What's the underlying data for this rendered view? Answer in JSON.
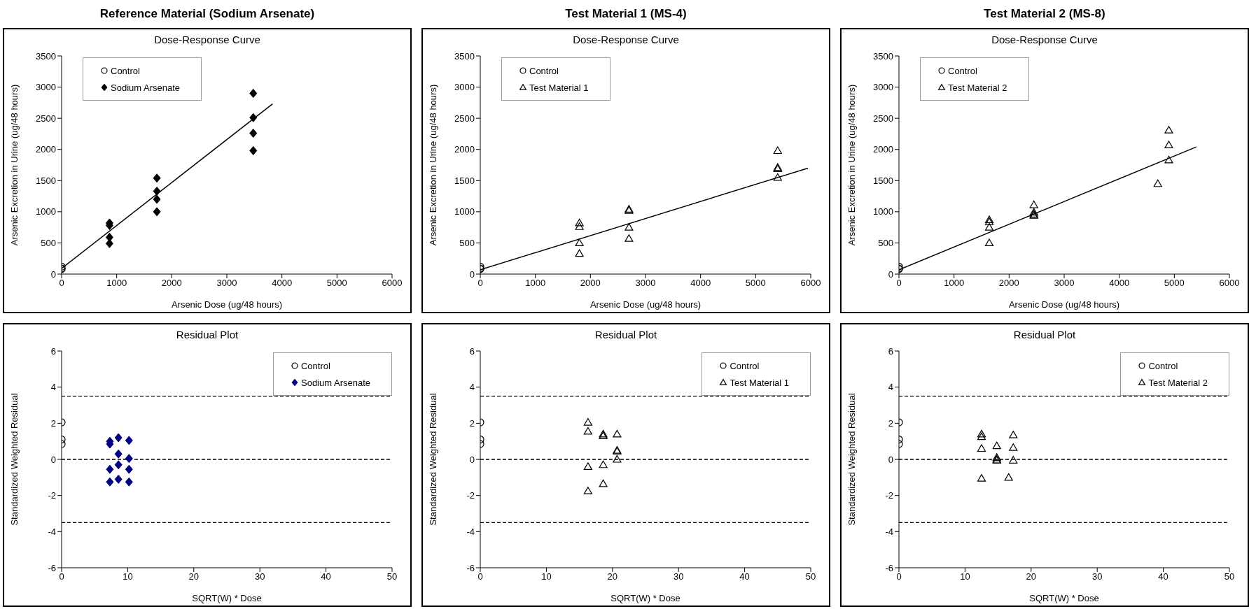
{
  "chart_data": [
    {
      "type": "scatter",
      "title": "Reference Material (Sodium Arsenate)",
      "subtitle": "Dose-Response Curve",
      "xlabel": "Arsenic Dose (ug/48 hours)",
      "ylabel": "Arsenic Excretion in Urine (ug/48 hours)",
      "xlim": [
        0,
        6000
      ],
      "xticks": [
        0,
        1000,
        2000,
        3000,
        4000,
        5000,
        6000
      ],
      "ylim": [
        0,
        3500
      ],
      "yticks": [
        0,
        500,
        1000,
        1500,
        2000,
        2500,
        3000,
        3500
      ],
      "grid": false,
      "legend": "top left",
      "series": [
        {
          "name": "Control",
          "color": "#000000",
          "marker": "circle",
          "x": [
            0,
            0,
            0
          ],
          "values": [
            120,
            90,
            80
          ]
        },
        {
          "name": "Sodium Arsenate",
          "color": "#000000",
          "marker": "diamond",
          "x": [
            870,
            870,
            870,
            870,
            1730,
            1730,
            1730,
            1730,
            3480,
            3480,
            3480,
            3480
          ],
          "values": [
            820,
            780,
            590,
            490,
            1540,
            1330,
            1200,
            1000,
            2900,
            2510,
            2260,
            1980
          ]
        },
        {
          "type": "line",
          "color": "#000000",
          "x": [
            0,
            3830
          ],
          "values": [
            90,
            2730
          ]
        }
      ]
    },
    {
      "type": "scatter",
      "title": "Test Material 1 (MS-4)",
      "subtitle": "Dose-Response Curve",
      "xlabel": "Arsenic Dose (ug/48 hours)",
      "ylabel": "Arsenic Excretion in Urine (ug/48 hours)",
      "xlim": [
        0,
        6000
      ],
      "xticks": [
        0,
        1000,
        2000,
        3000,
        4000,
        5000,
        6000
      ],
      "ylim": [
        0,
        3500
      ],
      "yticks": [
        0,
        500,
        1000,
        1500,
        2000,
        2500,
        3000,
        3500
      ],
      "grid": false,
      "legend": "top left",
      "series": [
        {
          "name": "Control",
          "color": "#000000",
          "marker": "circle",
          "x": [
            0,
            0,
            0
          ],
          "values": [
            120,
            90,
            80
          ]
        },
        {
          "name": "Test Material 1",
          "color": "#000000",
          "marker": "triangle",
          "x": [
            1800,
            1800,
            1800,
            1800,
            2700,
            2700,
            2700,
            2700,
            5400,
            5400,
            5400,
            5400
          ],
          "values": [
            820,
            760,
            500,
            330,
            1040,
            1020,
            750,
            570,
            1980,
            1710,
            1690,
            1550
          ]
        },
        {
          "type": "line",
          "color": "#000000",
          "x": [
            0,
            5950
          ],
          "values": [
            70,
            1700
          ]
        }
      ]
    },
    {
      "type": "scatter",
      "title": "Test Material 2 (MS-8)",
      "subtitle": "Dose-Response Curve",
      "xlabel": "Arsenic Dose (ug/48 hours)",
      "ylabel": "Arsenic Excretion in Urine (ug/48 hours)",
      "xlim": [
        0,
        6000
      ],
      "xticks": [
        0,
        1000,
        2000,
        3000,
        4000,
        5000,
        6000
      ],
      "ylim": [
        0,
        3500
      ],
      "yticks": [
        0,
        500,
        1000,
        1500,
        2000,
        2500,
        3000,
        3500
      ],
      "grid": false,
      "legend": "top left",
      "series": [
        {
          "name": "Control",
          "color": "#000000",
          "marker": "circle",
          "x": [
            0,
            0,
            0
          ],
          "values": [
            120,
            90,
            80
          ]
        },
        {
          "name": "Test Material 2",
          "color": "#000000",
          "marker": "triangle",
          "x": [
            1640,
            1640,
            1640,
            1640,
            2450,
            2450,
            2450,
            2450,
            4700,
            4900,
            4900,
            4900
          ],
          "values": [
            870,
            840,
            750,
            500,
            1110,
            990,
            960,
            940,
            1450,
            2310,
            2070,
            1830
          ]
        },
        {
          "type": "line",
          "color": "#000000",
          "x": [
            0,
            5400
          ],
          "values": [
            70,
            2040
          ]
        }
      ]
    },
    {
      "type": "scatter",
      "title": "Residual Plot",
      "xlabel": "SQRT(W) * Dose",
      "ylabel": "Standardized Weighted Residual",
      "xlim": [
        0,
        50
      ],
      "xticks": [
        0,
        10,
        20,
        30,
        40,
        50
      ],
      "ylim": [
        -6,
        6
      ],
      "yticks": [
        -6,
        -4,
        -2,
        0,
        2,
        4,
        6
      ],
      "grid": false,
      "legend": "top right",
      "ref_lines": [
        {
          "axis": "y",
          "value": 3.5,
          "line_style": "dashed"
        },
        {
          "axis": "y",
          "value": 0,
          "line_style": "dashed"
        },
        {
          "axis": "y",
          "value": -3.5,
          "line_style": "dashed"
        }
      ],
      "series": [
        {
          "name": "Control",
          "color": "#000000",
          "marker": "circle",
          "x": [
            0,
            0,
            0
          ],
          "values": [
            2.05,
            1.1,
            0.85
          ]
        },
        {
          "name": "Sodium Arsenate",
          "color": "#000080",
          "marker": "diamond",
          "x": [
            7.3,
            7.3,
            7.3,
            7.3,
            8.6,
            8.6,
            8.6,
            8.6,
            10.2,
            10.2,
            10.2,
            10.2
          ],
          "values": [
            1.0,
            0.85,
            -0.55,
            -1.25,
            1.2,
            0.3,
            -0.3,
            -1.1,
            1.05,
            0.05,
            -0.55,
            -1.25
          ]
        }
      ]
    },
    {
      "type": "scatter",
      "title": "Residual Plot",
      "xlabel": "SQRT(W) * Dose",
      "ylabel": "Standardized Weighted Residual",
      "xlim": [
        0,
        50
      ],
      "xticks": [
        0,
        10,
        20,
        30,
        40,
        50
      ],
      "ylim": [
        -6,
        6
      ],
      "yticks": [
        -6,
        -4,
        -2,
        0,
        2,
        4,
        6
      ],
      "grid": false,
      "legend": "top right",
      "ref_lines": [
        {
          "axis": "y",
          "value": 3.5,
          "line_style": "dashed"
        },
        {
          "axis": "y",
          "value": 0,
          "line_style": "dashed"
        },
        {
          "axis": "y",
          "value": -3.5,
          "line_style": "dashed"
        }
      ],
      "series": [
        {
          "name": "Control",
          "color": "#000000",
          "marker": "circle",
          "x": [
            0,
            0,
            0
          ],
          "values": [
            2.05,
            1.1,
            0.85
          ]
        },
        {
          "name": "Test Material 1",
          "color": "#000000",
          "marker": "triangle",
          "x": [
            16.3,
            16.3,
            16.3,
            16.3,
            18.6,
            18.6,
            18.6,
            18.6,
            20.7,
            20.7,
            20.7,
            20.7
          ],
          "values": [
            2.05,
            1.55,
            -0.4,
            -1.75,
            1.4,
            1.3,
            -0.3,
            -1.35,
            1.4,
            0.5,
            0.45,
            0.0
          ]
        }
      ]
    },
    {
      "type": "scatter",
      "title": "Residual Plot",
      "xlabel": "SQRT(W) * Dose",
      "ylabel": "Standardized Weighted Residual",
      "xlim": [
        0,
        50
      ],
      "xticks": [
        0,
        10,
        20,
        30,
        40,
        50
      ],
      "ylim": [
        -6,
        6
      ],
      "yticks": [
        -6,
        -4,
        -2,
        0,
        2,
        4,
        6
      ],
      "grid": false,
      "legend": "top right",
      "ref_lines": [
        {
          "axis": "y",
          "value": 3.5,
          "line_style": "dashed"
        },
        {
          "axis": "y",
          "value": 0,
          "line_style": "dashed"
        },
        {
          "axis": "y",
          "value": -3.5,
          "line_style": "dashed"
        }
      ],
      "series": [
        {
          "name": "Control",
          "color": "#000000",
          "marker": "circle",
          "x": [
            0,
            0,
            0
          ],
          "values": [
            2.05,
            1.1,
            0.85
          ]
        },
        {
          "name": "Test Material 2",
          "color": "#000000",
          "marker": "triangle",
          "x": [
            12.5,
            12.5,
            12.5,
            12.5,
            14.8,
            14.8,
            14.8,
            14.8,
            16.6,
            17.3,
            17.3,
            17.3
          ],
          "values": [
            1.4,
            1.25,
            0.6,
            -1.05,
            0.75,
            0.1,
            0.0,
            -0.05,
            -1.0,
            1.35,
            0.65,
            -0.05
          ]
        }
      ]
    }
  ]
}
